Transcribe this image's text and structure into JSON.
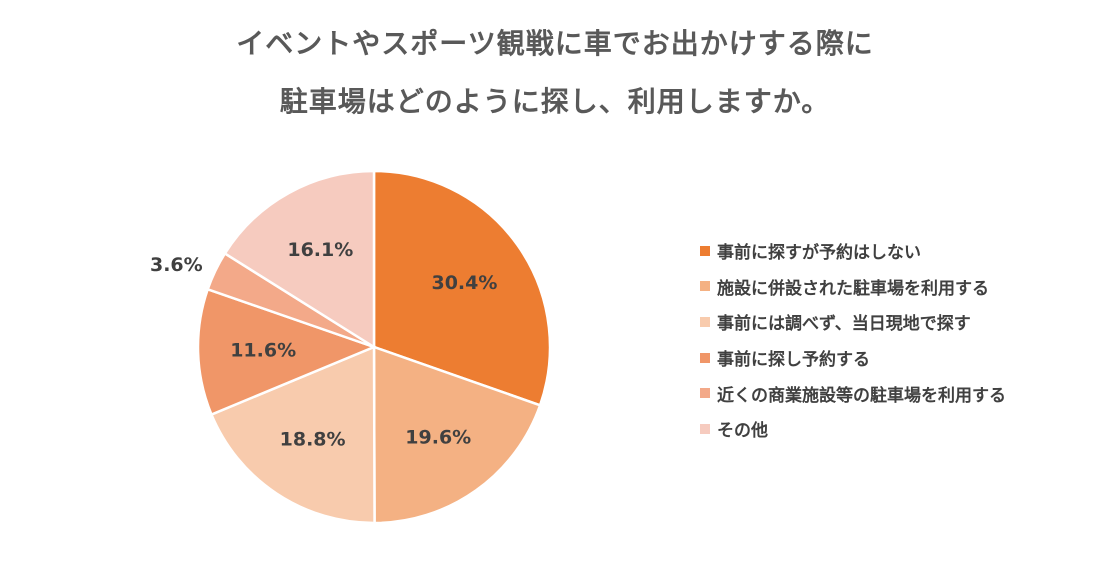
{
  "title": {
    "line1": "イベントやスポーツ観戦に車でお出かけする際に",
    "line2": "駐車場はどのように探し、利用しますか。"
  },
  "chart_data": {
    "type": "pie",
    "categories": [
      "事前に探すが予約はしない",
      "施設に併設された駐車場を利用する",
      "事前には調べず、当日現地で探す",
      "事前に探し予約する",
      "近くの商業施設等の駐車場を利用する",
      "その他"
    ],
    "values": [
      30.4,
      19.6,
      18.8,
      11.6,
      3.6,
      16.1
    ],
    "labels": [
      "30.4%",
      "19.6%",
      "18.8%",
      "11.6%",
      "3.6%",
      "16.1%"
    ],
    "colors": [
      "#ED7D31",
      "#F4B183",
      "#F8CBAD",
      "#F09668",
      "#F3A989",
      "#F6CBBF"
    ],
    "legend_position": "right",
    "start_angle": "12 o'clock",
    "direction": "clockwise"
  }
}
